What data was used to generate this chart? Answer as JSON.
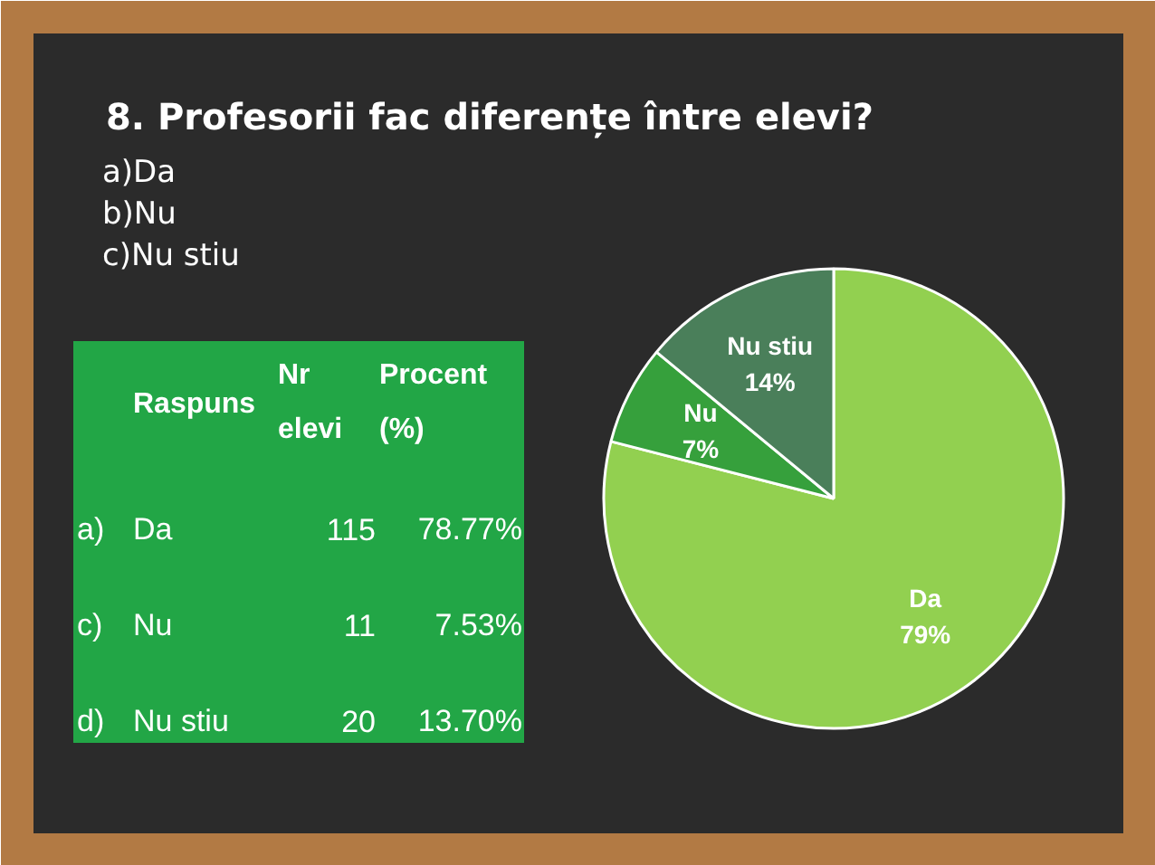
{
  "chart_data": {
    "type": "pie",
    "title": "8. Profesorii fac diferențe între elevi?",
    "subtitle": "a)Da\nb)Nu\nc)Nu stiu",
    "categories": [
      "Da",
      "Nu",
      "Nu stiu"
    ],
    "values": [
      79,
      7,
      14
    ],
    "colors": [
      "#92d050",
      "#36a03c",
      "#4a7f5a"
    ],
    "value_labels": [
      "79%",
      "7%",
      "14%"
    ],
    "annotations": [
      "Raspuns",
      "Nr elevi",
      "Procent (%)",
      "a)",
      "Da",
      "115",
      "78.77%",
      "c)",
      "Nu",
      "11",
      "7.53%",
      "d)",
      "Nu stiu",
      "20",
      "13.70%"
    ]
  }
}
